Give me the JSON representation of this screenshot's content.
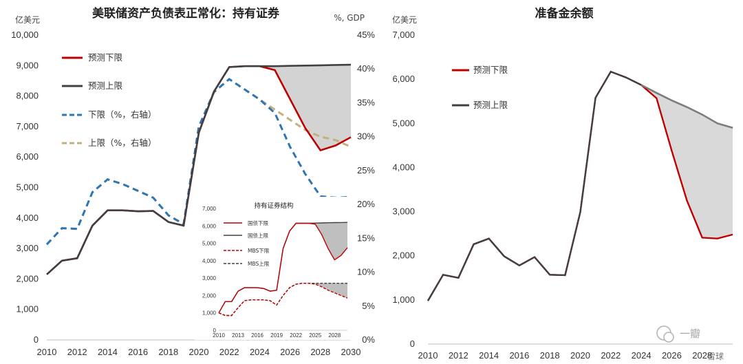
{
  "chart_data": [
    {
      "id": "left",
      "type": "line",
      "title": "美联储资产负债表正常化：持有证券",
      "left_unit": "亿美元",
      "right_unit": "%, GDP",
      "x_ticks": [
        "2010",
        "2012",
        "2014",
        "2016",
        "2018",
        "2020",
        "2022",
        "2024",
        "2026",
        "2028",
        "2030"
      ],
      "y_ticks": [
        "0",
        "1,000",
        "2,000",
        "3,000",
        "4,000",
        "5,000",
        "6,000",
        "7,000",
        "8,000",
        "9,000",
        "10,000"
      ],
      "y2_ticks": [
        "0%",
        "5%",
        "10%",
        "15%",
        "20%",
        "25%",
        "30%",
        "35%",
        "40%",
        "45%"
      ],
      "ylim": [
        0,
        10000
      ],
      "y2lim": [
        0,
        45
      ],
      "xlim": [
        2010,
        2030
      ],
      "series": [
        {
          "name": "预测下限",
          "axis": "left",
          "color": "#c00000",
          "style": "solid",
          "x": [
            2010,
            2011,
            2012,
            2013,
            2014,
            2015,
            2016,
            2017,
            2018,
            2019,
            2020,
            2021,
            2022,
            2023,
            2024,
            2025,
            2026,
            2027,
            2028,
            2029,
            2030
          ],
          "values": [
            2150,
            2600,
            2680,
            3750,
            4250,
            4250,
            4220,
            4230,
            3870,
            3750,
            6800,
            8150,
            8950,
            8980,
            8980,
            8850,
            7900,
            6950,
            6220,
            6380,
            6650
          ]
        },
        {
          "name": "预测上限",
          "axis": "left",
          "color": "#404040",
          "style": "solid",
          "x": [
            2010,
            2011,
            2012,
            2013,
            2014,
            2015,
            2016,
            2017,
            2018,
            2019,
            2020,
            2021,
            2022,
            2023,
            2024,
            2025,
            2026,
            2027,
            2028,
            2029,
            2030
          ],
          "values": [
            2150,
            2600,
            2680,
            3750,
            4250,
            4250,
            4220,
            4230,
            3870,
            3750,
            6800,
            8150,
            8950,
            8980,
            8980,
            8980,
            8990,
            9000,
            9010,
            9020,
            9030
          ]
        },
        {
          "name": "下限（%，右轴）",
          "axis": "right",
          "color": "#2e75b6",
          "style": "dashed",
          "x": [
            2010,
            2011,
            2012,
            2013,
            2014,
            2015,
            2016,
            2017,
            2018,
            2019,
            2020,
            2021,
            2022,
            2023,
            2024,
            2025,
            2026,
            2027,
            2028,
            2029,
            2030
          ],
          "values": [
            14.1,
            16.5,
            16.4,
            21.8,
            23.7,
            23.0,
            22.0,
            21.0,
            18.4,
            17.1,
            31.5,
            36.6,
            38.5,
            37.0,
            35.5,
            33.5,
            28.5,
            24.5,
            21.2,
            21.0,
            21.1
          ]
        },
        {
          "name": "上限（%，右轴）",
          "axis": "right",
          "color": "#c4b07a",
          "style": "dashed",
          "x": [
            2010,
            2011,
            2012,
            2013,
            2014,
            2015,
            2016,
            2017,
            2018,
            2019,
            2020,
            2021,
            2022,
            2023,
            2024,
            2025,
            2026,
            2027,
            2028,
            2029,
            2030
          ],
          "values": [
            14.1,
            16.5,
            16.4,
            21.8,
            23.7,
            23.0,
            22.0,
            21.0,
            18.4,
            17.1,
            31.5,
            36.6,
            38.5,
            37.0,
            35.5,
            34.0,
            32.5,
            31.0,
            30.0,
            29.5,
            28.5
          ]
        }
      ],
      "shaded_between": [
        "预测下限",
        "预测上限"
      ],
      "legend": "top-left"
    },
    {
      "id": "inset",
      "type": "line",
      "title": "持有证券结构",
      "x_ticks": [
        "2010",
        "2013",
        "2016",
        "2019",
        "2022",
        "2025",
        "2028"
      ],
      "y_ticks": [
        "0",
        "1,000",
        "2,000",
        "3,000",
        "4,000",
        "5,000",
        "6,000",
        "7,000"
      ],
      "ylim": [
        0,
        7000
      ],
      "xlim": [
        2010,
        2030
      ],
      "series": [
        {
          "name": "国债下限",
          "color": "#c00000",
          "style": "solid",
          "x": [
            2010,
            2011,
            2012,
            2013,
            2014,
            2015,
            2016,
            2017,
            2018,
            2019,
            2020,
            2021,
            2022,
            2023,
            2024,
            2025,
            2026,
            2027,
            2028,
            2029,
            2030
          ],
          "values": [
            1000,
            1650,
            1650,
            2250,
            2450,
            2450,
            2450,
            2400,
            2250,
            2300,
            4700,
            5700,
            6150,
            6150,
            6150,
            6100,
            5500,
            4700,
            4050,
            4300,
            4750
          ]
        },
        {
          "name": "国债上限",
          "color": "#404040",
          "style": "solid",
          "x": [
            2010,
            2011,
            2012,
            2013,
            2014,
            2015,
            2016,
            2017,
            2018,
            2019,
            2020,
            2021,
            2022,
            2023,
            2024,
            2025,
            2026,
            2027,
            2028,
            2029,
            2030
          ],
          "values": [
            1000,
            1650,
            1650,
            2250,
            2450,
            2450,
            2450,
            2400,
            2250,
            2300,
            4700,
            5700,
            6150,
            6150,
            6150,
            6160,
            6170,
            6180,
            6190,
            6195,
            6200
          ]
        },
        {
          "name": "MBS下限",
          "color": "#c00000",
          "style": "dashed",
          "x": [
            2010,
            2011,
            2012,
            2013,
            2014,
            2015,
            2016,
            2017,
            2018,
            2019,
            2020,
            2021,
            2022,
            2023,
            2024,
            2025,
            2026,
            2027,
            2028,
            2029,
            2030
          ],
          "values": [
            1000,
            850,
            850,
            1300,
            1700,
            1750,
            1750,
            1750,
            1700,
            1450,
            2000,
            2450,
            2650,
            2700,
            2700,
            2650,
            2500,
            2300,
            2150,
            2000,
            1850
          ]
        },
        {
          "name": "MBS上限",
          "color": "#404040",
          "style": "dashed",
          "x": [
            2010,
            2011,
            2012,
            2013,
            2014,
            2015,
            2016,
            2017,
            2018,
            2019,
            2020,
            2021,
            2022,
            2023,
            2024,
            2025,
            2026,
            2027,
            2028,
            2029,
            2030
          ],
          "values": [
            1000,
            850,
            850,
            1300,
            1700,
            1750,
            1750,
            1750,
            1700,
            1450,
            2000,
            2450,
            2650,
            2700,
            2700,
            2700,
            2700,
            2700,
            2700,
            2700,
            2700
          ]
        }
      ],
      "legend": "top-left"
    },
    {
      "id": "right",
      "type": "line",
      "title": "准备金余额",
      "left_unit": "亿美元",
      "x_ticks": [
        "2010",
        "2012",
        "2014",
        "2016",
        "2018",
        "2020",
        "2022",
        "2024",
        "2026",
        "2028"
      ],
      "y_ticks": [
        "0",
        "1,000",
        "2,000",
        "3,000",
        "4,000",
        "5,000",
        "6,000",
        "7,000"
      ],
      "ylim": [
        0,
        7000
      ],
      "xlim": [
        2010,
        2030
      ],
      "series": [
        {
          "name": "预测下限",
          "color": "#c00000",
          "style": "solid",
          "x": [
            2010,
            2011,
            2012,
            2013,
            2014,
            2015,
            2016,
            2017,
            2018,
            2019,
            2020,
            2021,
            2022,
            2023,
            2024,
            2025,
            2026,
            2027,
            2028,
            2029,
            2030
          ],
          "values": [
            980,
            1570,
            1500,
            2260,
            2390,
            1990,
            1780,
            1970,
            1570,
            1560,
            2990,
            5580,
            6170,
            6040,
            5870,
            5570,
            4380,
            3250,
            2410,
            2390,
            2480
          ]
        },
        {
          "name": "预测上限",
          "color": "#404040",
          "style": "solid",
          "x": [
            2010,
            2011,
            2012,
            2013,
            2014,
            2015,
            2016,
            2017,
            2018,
            2019,
            2020,
            2021,
            2022,
            2023,
            2024,
            2025,
            2026,
            2027,
            2028,
            2029,
            2030
          ],
          "values": [
            980,
            1570,
            1500,
            2260,
            2390,
            1990,
            1780,
            1970,
            1570,
            1560,
            2990,
            5580,
            6170,
            6040,
            5870,
            5690,
            5520,
            5370,
            5200,
            5000,
            4900
          ]
        }
      ],
      "shaded_between": [
        "预测下限",
        "预测上限"
      ],
      "legend": "top-left"
    }
  ],
  "watermark": "一瓣",
  "watermark_sub": "雪球"
}
